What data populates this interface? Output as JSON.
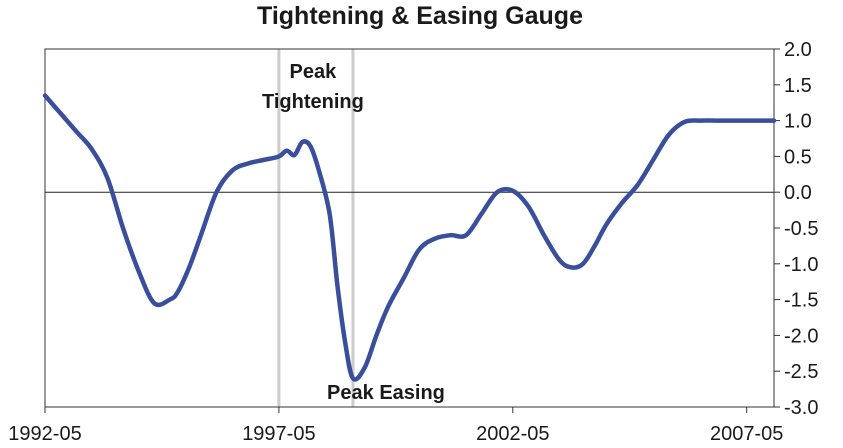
{
  "chart_data": {
    "type": "line",
    "title": "Tightening & Easing Gauge",
    "xlabel": "",
    "ylabel": "",
    "x_start": "1992-05",
    "x_end": "2007-12",
    "xtick_labels": [
      "1992-05",
      "1997-05",
      "2002-05",
      "2007-05"
    ],
    "ylim": [
      -3.0,
      2.0
    ],
    "ytick_labels": [
      "2.0",
      "1.5",
      "1.0",
      "0.5",
      "0.0",
      "-0.5",
      "-1.0",
      "-1.5",
      "-2.0",
      "-2.5",
      "-3.0"
    ],
    "y_axis_position": "right",
    "zero_line": true,
    "grid": false,
    "line_color": "#3a4f9c",
    "marker_color": "#cccccc",
    "annotations": [
      {
        "label_lines": [
          "Peak",
          "Tightening"
        ],
        "x": "1997-05"
      },
      {
        "label_lines": [
          "Peak Easing"
        ],
        "x": "1998-12"
      }
    ],
    "series": [
      {
        "x": [
          "1992-05",
          "1992-09",
          "1993-01",
          "1993-05",
          "1993-09",
          "1994-01",
          "1994-05",
          "1994-09",
          "1995-01",
          "1995-03",
          "1995-06",
          "1995-09",
          "1996-01",
          "1996-05",
          "1996-09",
          "1997-01",
          "1997-05",
          "1997-07",
          "1997-09",
          "1997-11",
          "1998-01",
          "1998-03",
          "1998-06",
          "1998-08",
          "1998-10",
          "1998-12",
          "1999-03",
          "1999-06",
          "1999-09",
          "2000-01",
          "2000-05",
          "2000-09",
          "2001-01",
          "2001-05",
          "2001-09",
          "2002-01",
          "2002-05",
          "2002-09",
          "2003-01",
          "2003-05",
          "2003-08",
          "2003-11",
          "2004-02",
          "2004-05",
          "2004-09",
          "2005-01",
          "2005-05",
          "2005-09",
          "2006-01",
          "2006-05",
          "2006-09",
          "2007-01",
          "2007-05",
          "2007-09",
          "2007-12"
        ],
        "values": [
          1.35,
          1.1,
          0.85,
          0.6,
          0.2,
          -0.5,
          -1.1,
          -1.55,
          -1.5,
          -1.4,
          -1.05,
          -0.6,
          0.0,
          0.3,
          0.4,
          0.45,
          0.5,
          0.58,
          0.52,
          0.7,
          0.65,
          0.35,
          -0.3,
          -1.3,
          -2.1,
          -2.6,
          -2.45,
          -2.0,
          -1.6,
          -1.2,
          -0.8,
          -0.65,
          -0.6,
          -0.6,
          -0.3,
          0.0,
          0.02,
          -0.2,
          -0.6,
          -0.95,
          -1.05,
          -1.0,
          -0.75,
          -0.45,
          -0.15,
          0.1,
          0.45,
          0.8,
          0.98,
          1.0,
          1.0,
          1.0,
          1.0,
          1.0,
          1.0
        ]
      }
    ]
  }
}
